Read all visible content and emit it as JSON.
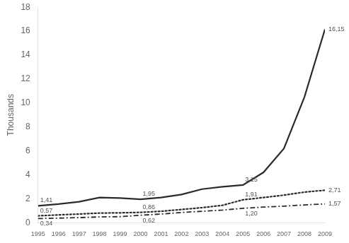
{
  "chart_data": {
    "type": "line",
    "y_label": "Thousands",
    "x": [
      1995,
      1996,
      1997,
      1998,
      1999,
      2000,
      2001,
      2002,
      2003,
      2004,
      2005,
      2006,
      2007,
      2008,
      2009
    ],
    "xlim": [
      1995,
      2009
    ],
    "xticks": [
      1995,
      1996,
      1997,
      1998,
      1999,
      2000,
      2001,
      2002,
      2003,
      2004,
      2005,
      2006,
      2007,
      2008,
      2009
    ],
    "ylim": [
      0,
      18
    ],
    "yticks": [
      0,
      2,
      4,
      6,
      8,
      10,
      12,
      14,
      16,
      18
    ],
    "grid": false,
    "data_labels": true,
    "series": [
      {
        "color": "#2b2b2b",
        "line_style": "solid",
        "values": [
          1.41,
          1.55,
          1.75,
          2.1,
          2.05,
          1.95,
          2.1,
          2.35,
          2.8,
          3.0,
          3.15,
          4.2,
          6.2,
          10.5,
          16.15
        ],
        "value_labels": [
          "1,41",
          null,
          null,
          null,
          null,
          "1,95",
          null,
          null,
          null,
          null,
          "3,15",
          null,
          null,
          null,
          "16,15"
        ]
      },
      {
        "color": "#2b2b2b",
        "line_style": "dotted",
        "values": [
          0.57,
          0.65,
          0.72,
          0.8,
          0.82,
          0.86,
          0.95,
          1.1,
          1.25,
          1.45,
          1.91,
          2.1,
          2.3,
          2.55,
          2.71
        ],
        "value_labels": [
          "0,57",
          null,
          null,
          null,
          null,
          "0,86",
          null,
          null,
          null,
          null,
          "1,91",
          null,
          null,
          null,
          "2,71"
        ]
      },
      {
        "color": "#2b2b2b",
        "line_style": "dashdot",
        "values": [
          0.34,
          0.38,
          0.42,
          0.48,
          0.5,
          0.62,
          0.72,
          0.85,
          0.95,
          1.05,
          1.2,
          1.3,
          1.38,
          1.48,
          1.57
        ],
        "value_labels": [
          "0,34",
          null,
          null,
          null,
          null,
          "0,62",
          null,
          null,
          null,
          null,
          "1,20",
          null,
          null,
          null,
          "1,57"
        ]
      }
    ]
  }
}
